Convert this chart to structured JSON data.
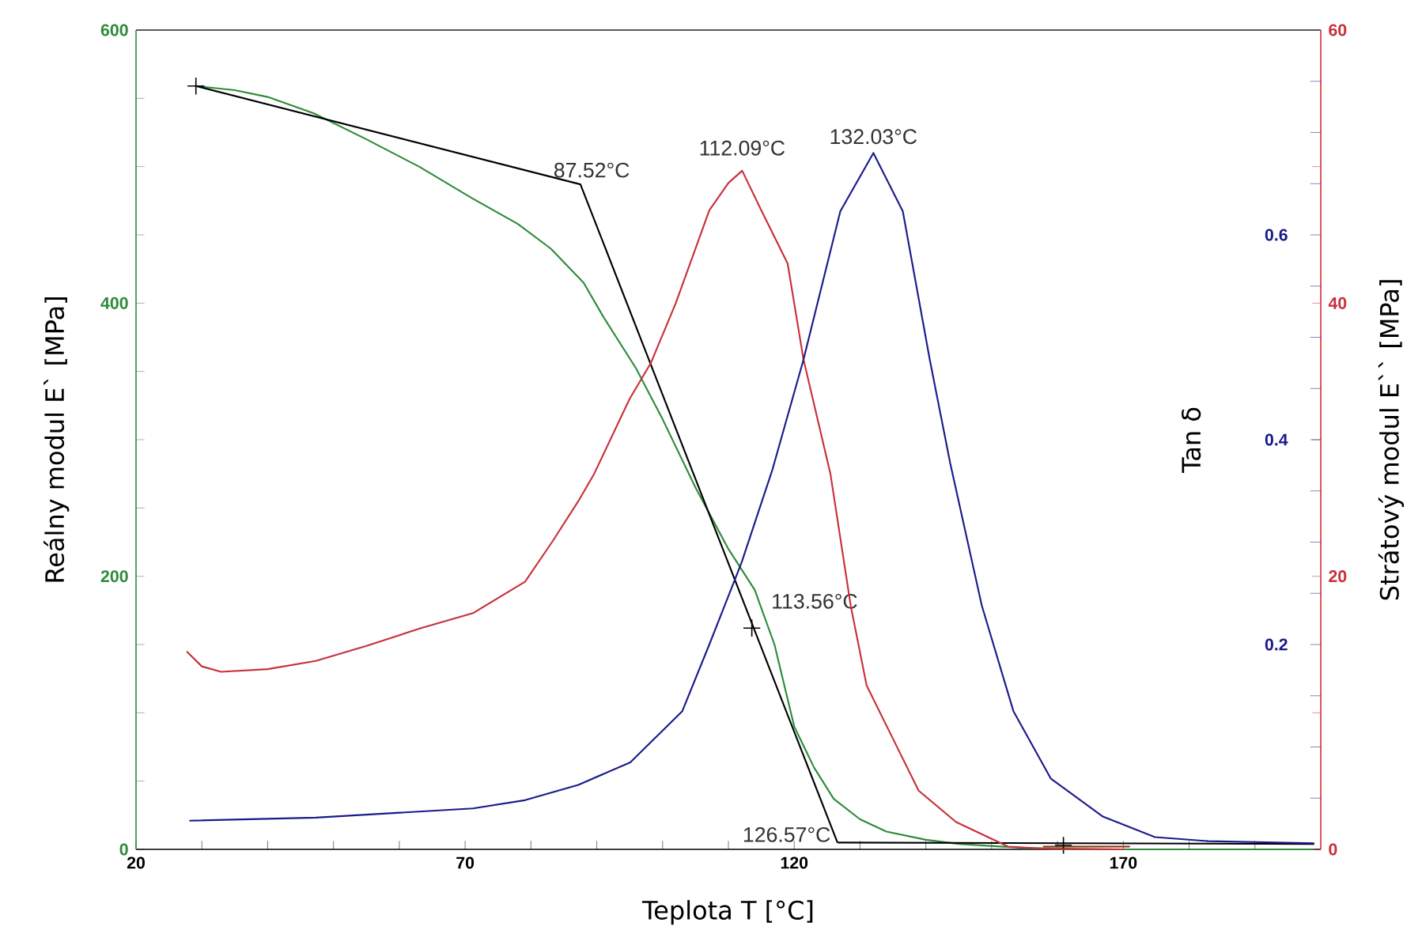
{
  "chart_data": {
    "type": "line",
    "xlabel": "Teplota T [°C]",
    "ylabel": "Reálny modul E` [MPa]",
    "y2label": "Strátový modul E`` [MPa]",
    "y3label": "Tan δ",
    "xlim": [
      20,
      200
    ],
    "ylim": [
      0,
      600
    ],
    "y2lim": [
      0,
      60
    ],
    "y3lim": [
      0,
      0.8
    ],
    "xticks": [
      20,
      {
        "value": 30,
        "label": null
      },
      {
        "value": 40,
        "label": null
      },
      {
        "value": 50,
        "label": null
      },
      {
        "value": 60,
        "label": null
      },
      70,
      {
        "value": 80,
        "label": null
      },
      {
        "value": 90,
        "label": null
      },
      {
        "value": 100,
        "label": null
      },
      {
        "value": 110,
        "label": null
      },
      120,
      {
        "value": 130,
        "label": null
      },
      {
        "value": 140,
        "label": null
      },
      {
        "value": 150,
        "label": null
      },
      {
        "value": 160,
        "label": null
      },
      170,
      {
        "value": 180,
        "label": null
      },
      {
        "value": 190,
        "label": null
      }
    ],
    "yticks": [
      0,
      {
        "value": 50,
        "label": null
      },
      {
        "value": 100,
        "label": null
      },
      {
        "value": 150,
        "label": null
      },
      200,
      {
        "value": 250,
        "label": null
      },
      {
        "value": 300,
        "label": null
      },
      {
        "value": 350,
        "label": null
      },
      400,
      {
        "value": 450,
        "label": null
      },
      {
        "value": 500,
        "label": null
      },
      {
        "value": 550,
        "label": null
      },
      600
    ],
    "y2ticks": [
      0,
      {
        "value": 10,
        "label": null
      },
      20,
      {
        "value": 30,
        "label": null
      },
      40,
      {
        "value": 50,
        "label": null
      },
      60
    ],
    "y3ticks": [
      {
        "value": 0.05,
        "label": null
      },
      {
        "value": 0.1,
        "label": null
      },
      {
        "value": 0.15,
        "label": null
      },
      0.2,
      {
        "value": 0.25,
        "label": null
      },
      {
        "value": 0.3,
        "label": null
      },
      {
        "value": 0.35,
        "label": null
      },
      0.4,
      {
        "value": 0.45,
        "label": null
      },
      {
        "value": 0.5,
        "label": null
      },
      {
        "value": 0.55,
        "label": null
      },
      0.6,
      {
        "value": 0.65,
        "label": null
      },
      {
        "value": 0.7,
        "label": null
      },
      {
        "value": 0.75,
        "label": null
      }
    ],
    "series": [
      {
        "color": "#2e8b3a",
        "x": [
          29.1,
          35,
          40,
          47,
          55,
          63,
          71,
          78,
          83,
          88,
          91,
          96,
          100,
          105,
          110,
          114,
          117,
          120,
          123,
          126,
          130,
          134,
          140,
          145,
          155,
          170,
          199
        ],
        "values": [
          559,
          556,
          551,
          539,
          520,
          500,
          477,
          458,
          440,
          415,
          390,
          352,
          315,
          265,
          220,
          190,
          150,
          90,
          60,
          37,
          22,
          13,
          7,
          4,
          1,
          0,
          0
        ]
      },
      {
        "color": "#c8303a",
        "axis": "y2",
        "x": [
          27.7,
          30,
          32.9,
          40,
          47.3,
          55,
          63.3,
          71.2,
          79.1,
          83.2,
          87.2,
          89.6,
          95,
          98.2,
          102,
          105,
          107.1,
          110,
          112.09,
          115,
          119,
          121.4,
          125.5,
          128.6,
          131,
          135,
          138.9,
          144.6,
          152.5,
          160,
          170
        ],
        "values": [
          14.5,
          13.4,
          13.0,
          13.2,
          13.8,
          14.9,
          16.2,
          17.3,
          19.6,
          22.5,
          25.5,
          27.5,
          33,
          35.6,
          40,
          44,
          46.8,
          48.8,
          49.7,
          46.8,
          42.9,
          35.9,
          27.5,
          17.8,
          12,
          8.1,
          4.3,
          2,
          0.2,
          0,
          0
        ]
      },
      {
        "color": "#1a1a8c",
        "axis": "y3",
        "x": [
          28.1,
          47.3,
          71.2,
          79.1,
          87.2,
          95.1,
          103,
          107.1,
          112,
          116.7,
          121.4,
          127,
          132.03,
          136.5,
          140.6,
          143.7,
          148.5,
          153.3,
          159,
          166.9,
          174.8,
          182.9,
          199
        ],
        "values": [
          0.028,
          0.031,
          0.04,
          0.048,
          0.063,
          0.085,
          0.135,
          0.2,
          0.28,
          0.371,
          0.478,
          0.623,
          0.68,
          0.623,
          0.478,
          0.377,
          0.238,
          0.135,
          0.069,
          0.032,
          0.012,
          0.008,
          0.006
        ]
      },
      {
        "color": "#000000",
        "x": [
          29.1,
          87.52,
          126.57
        ],
        "values": [
          559,
          487,
          5
        ]
      },
      {
        "color": "#000000",
        "x": [
          126.57,
          199
        ],
        "values": [
          5,
          4
        ]
      },
      {
        "color": "#8b2a10",
        "x": [
          157.8,
          171
        ],
        "values": [
          2,
          2
        ]
      },
      {
        "type": "scatter",
        "marker": "cross",
        "color": "#000000",
        "x": [
          29.1,
          113.56,
          160.9
        ],
        "values": [
          559,
          162,
          3
        ]
      }
    ],
    "annotations": [
      {
        "text": "87.52°C",
        "x": 87.52,
        "y": 487
      },
      {
        "text": "112.09°C",
        "x": 112.09,
        "y": 497
      },
      {
        "text": "132.03°C",
        "x": 132.03,
        "y": 510
      },
      {
        "text": "113.56°C",
        "x": 113.56,
        "y": 162
      },
      {
        "text": "126.57°C",
        "x": 126.57,
        "y": 5
      }
    ]
  }
}
